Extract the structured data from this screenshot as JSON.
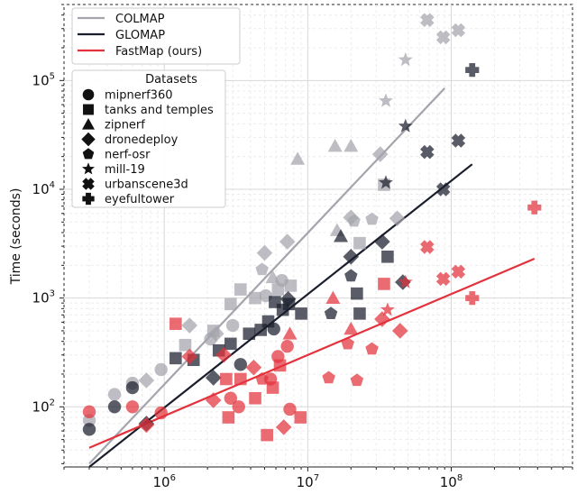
{
  "chart_data": {
    "type": "scatter",
    "title": "",
    "xlabel": "",
    "ylabel": "Time (seconds)",
    "x_scale": "log",
    "y_scale": "log",
    "xlim": [
      200000,
      700000000
    ],
    "ylim": [
      28,
      500000
    ],
    "grid": true,
    "x_tick_labels": [
      "10^6",
      "10^7",
      "10^8"
    ],
    "x_ticks": [
      1000000,
      10000000,
      100000000
    ],
    "y_tick_labels": [
      "10^2",
      "10^3",
      "10^4",
      "10^5"
    ],
    "y_ticks": [
      100,
      1000,
      10000,
      100000
    ],
    "methods_legend": {
      "placement": "top-left",
      "entries": [
        {
          "name": "COLMAP",
          "color": "#a4a4ac"
        },
        {
          "name": "GLOMAP",
          "color": "#1a1e2c"
        },
        {
          "name": "FastMap (ours)",
          "color": "#e3323c"
        }
      ]
    },
    "datasets_legend": {
      "title": "Datasets",
      "placement": "upper-left",
      "entries": [
        {
          "name": "mipnerf360",
          "marker": "circle"
        },
        {
          "name": "tanks and temples",
          "marker": "square"
        },
        {
          "name": "zipnerf",
          "marker": "triangle"
        },
        {
          "name": "dronedeploy",
          "marker": "diamond"
        },
        {
          "name": "nerf-osr",
          "marker": "pentagon"
        },
        {
          "name": "mill-19",
          "marker": "star"
        },
        {
          "name": "urbanscene3d",
          "marker": "x"
        },
        {
          "name": "eyefultower",
          "marker": "plus"
        }
      ]
    },
    "series": [
      {
        "name": "COLMAP",
        "color": "#a4a4ac",
        "trend": [
          [
            300000,
            30
          ],
          [
            90000000,
            85000
          ]
        ],
        "points": [
          {
            "m": "circle",
            "x": 300000,
            "y": 75
          },
          {
            "m": "circle",
            "x": 450000,
            "y": 130
          },
          {
            "m": "circle",
            "x": 600000,
            "y": 165
          },
          {
            "m": "circle",
            "x": 950000,
            "y": 220
          },
          {
            "m": "circle",
            "x": 2100000,
            "y": 420
          },
          {
            "m": "circle",
            "x": 3000000,
            "y": 560
          },
          {
            "m": "circle",
            "x": 5100000,
            "y": 1050
          },
          {
            "m": "circle",
            "x": 6600000,
            "y": 1450
          },
          {
            "m": "square",
            "x": 1400000,
            "y": 370
          },
          {
            "m": "square",
            "x": 2900000,
            "y": 880
          },
          {
            "m": "square",
            "x": 3400000,
            "y": 1200
          },
          {
            "m": "square",
            "x": 4300000,
            "y": 1000
          },
          {
            "m": "square",
            "x": 6200000,
            "y": 1200
          },
          {
            "m": "square",
            "x": 7600000,
            "y": 1300
          },
          {
            "m": "square",
            "x": 2200000,
            "y": 500
          },
          {
            "m": "square",
            "x": 23000000,
            "y": 3200
          },
          {
            "m": "square",
            "x": 34000000,
            "y": 11000
          },
          {
            "m": "triangle",
            "x": 8500000,
            "y": 19000
          },
          {
            "m": "triangle",
            "x": 15500000,
            "y": 25000
          },
          {
            "m": "triangle",
            "x": 20000000,
            "y": 25000
          },
          {
            "m": "triangle",
            "x": 16000000,
            "y": 4200
          },
          {
            "m": "triangle",
            "x": 5700000,
            "y": 1550
          },
          {
            "m": "diamond",
            "x": 750000,
            "y": 175
          },
          {
            "m": "diamond",
            "x": 1500000,
            "y": 560
          },
          {
            "m": "diamond",
            "x": 2300000,
            "y": 470
          },
          {
            "m": "diamond",
            "x": 5000000,
            "y": 2600
          },
          {
            "m": "diamond",
            "x": 7200000,
            "y": 3300
          },
          {
            "m": "diamond",
            "x": 32000000,
            "y": 21000
          },
          {
            "m": "diamond",
            "x": 20000000,
            "y": 5500
          },
          {
            "m": "diamond",
            "x": 42000000,
            "y": 5400
          },
          {
            "m": "pentagon",
            "x": 4800000,
            "y": 1830
          },
          {
            "m": "pentagon",
            "x": 21000000,
            "y": 5100
          },
          {
            "m": "pentagon",
            "x": 28000000,
            "y": 5300
          },
          {
            "m": "star",
            "x": 35000000,
            "y": 65000
          },
          {
            "m": "star",
            "x": 48000000,
            "y": 155000
          },
          {
            "m": "x",
            "x": 68000000,
            "y": 360000
          },
          {
            "m": "x",
            "x": 88000000,
            "y": 250000
          },
          {
            "m": "x",
            "x": 112000000,
            "y": 290000
          }
        ]
      },
      {
        "name": "GLOMAP",
        "color": "#1a1e2c",
        "trend": [
          [
            300000,
            28
          ],
          [
            140000000,
            17000
          ]
        ],
        "points": [
          {
            "m": "circle",
            "x": 300000,
            "y": 62
          },
          {
            "m": "circle",
            "x": 450000,
            "y": 100
          },
          {
            "m": "circle",
            "x": 600000,
            "y": 150
          },
          {
            "m": "circle",
            "x": 3400000,
            "y": 245
          },
          {
            "m": "circle",
            "x": 5800000,
            "y": 520
          },
          {
            "m": "square",
            "x": 1200000,
            "y": 280
          },
          {
            "m": "square",
            "x": 1600000,
            "y": 270
          },
          {
            "m": "square",
            "x": 2400000,
            "y": 330
          },
          {
            "m": "square",
            "x": 2900000,
            "y": 380
          },
          {
            "m": "square",
            "x": 3900000,
            "y": 470
          },
          {
            "m": "square",
            "x": 4700000,
            "y": 510
          },
          {
            "m": "square",
            "x": 5300000,
            "y": 610
          },
          {
            "m": "square",
            "x": 5900000,
            "y": 920
          },
          {
            "m": "square",
            "x": 6700000,
            "y": 780
          },
          {
            "m": "square",
            "x": 7400000,
            "y": 880
          },
          {
            "m": "square",
            "x": 9000000,
            "y": 720
          },
          {
            "m": "square",
            "x": 22000000,
            "y": 1100
          },
          {
            "m": "square",
            "x": 36000000,
            "y": 2400
          },
          {
            "m": "square",
            "x": 23000000,
            "y": 720
          },
          {
            "m": "triangle",
            "x": 17000000,
            "y": 3700
          },
          {
            "m": "diamond",
            "x": 750000,
            "y": 70
          },
          {
            "m": "diamond",
            "x": 2200000,
            "y": 185
          },
          {
            "m": "diamond",
            "x": 7300000,
            "y": 980
          },
          {
            "m": "diamond",
            "x": 20000000,
            "y": 2400
          },
          {
            "m": "diamond",
            "x": 33000000,
            "y": 3300
          },
          {
            "m": "diamond",
            "x": 46000000,
            "y": 1400
          },
          {
            "m": "pentagon",
            "x": 14500000,
            "y": 720
          },
          {
            "m": "pentagon",
            "x": 20000000,
            "y": 1600
          },
          {
            "m": "star",
            "x": 35000000,
            "y": 11500
          },
          {
            "m": "star",
            "x": 48000000,
            "y": 38000
          },
          {
            "m": "x",
            "x": 68000000,
            "y": 22000
          },
          {
            "m": "x",
            "x": 88000000,
            "y": 10000
          },
          {
            "m": "x",
            "x": 112000000,
            "y": 28000
          },
          {
            "m": "plus",
            "x": 140000000,
            "y": 125000
          }
        ]
      },
      {
        "name": "FastMap (ours)",
        "color": "#e3323c",
        "trend": [
          [
            300000,
            42
          ],
          [
            380000000,
            2300
          ]
        ],
        "points": [
          {
            "m": "circle",
            "x": 300000,
            "y": 90
          },
          {
            "m": "circle",
            "x": 600000,
            "y": 100
          },
          {
            "m": "circle",
            "x": 950000,
            "y": 88
          },
          {
            "m": "circle",
            "x": 2900000,
            "y": 120
          },
          {
            "m": "circle",
            "x": 3300000,
            "y": 100
          },
          {
            "m": "circle",
            "x": 5500000,
            "y": 180
          },
          {
            "m": "circle",
            "x": 6200000,
            "y": 290
          },
          {
            "m": "circle",
            "x": 7200000,
            "y": 360
          },
          {
            "m": "circle",
            "x": 7500000,
            "y": 95
          },
          {
            "m": "square",
            "x": 1200000,
            "y": 580
          },
          {
            "m": "square",
            "x": 2700000,
            "y": 180
          },
          {
            "m": "square",
            "x": 2800000,
            "y": 80
          },
          {
            "m": "square",
            "x": 3400000,
            "y": 180
          },
          {
            "m": "square",
            "x": 4300000,
            "y": 120
          },
          {
            "m": "square",
            "x": 5200000,
            "y": 55
          },
          {
            "m": "square",
            "x": 5700000,
            "y": 150
          },
          {
            "m": "square",
            "x": 6400000,
            "y": 240
          },
          {
            "m": "square",
            "x": 8900000,
            "y": 80
          },
          {
            "m": "square",
            "x": 34000000,
            "y": 1350
          },
          {
            "m": "triangle",
            "x": 15000000,
            "y": 1000
          },
          {
            "m": "triangle",
            "x": 20000000,
            "y": 520
          },
          {
            "m": "triangle",
            "x": 7500000,
            "y": 470
          },
          {
            "m": "diamond",
            "x": 750000,
            "y": 68
          },
          {
            "m": "diamond",
            "x": 1500000,
            "y": 290
          },
          {
            "m": "diamond",
            "x": 2200000,
            "y": 115
          },
          {
            "m": "diamond",
            "x": 2600000,
            "y": 300
          },
          {
            "m": "diamond",
            "x": 4200000,
            "y": 230
          },
          {
            "m": "diamond",
            "x": 6800000,
            "y": 65
          },
          {
            "m": "diamond",
            "x": 33000000,
            "y": 640
          },
          {
            "m": "diamond",
            "x": 44000000,
            "y": 500
          },
          {
            "m": "pentagon",
            "x": 4800000,
            "y": 180
          },
          {
            "m": "pentagon",
            "x": 14000000,
            "y": 185
          },
          {
            "m": "pentagon",
            "x": 19000000,
            "y": 380
          },
          {
            "m": "pentagon",
            "x": 22000000,
            "y": 175
          },
          {
            "m": "pentagon",
            "x": 28000000,
            "y": 340
          },
          {
            "m": "star",
            "x": 36000000,
            "y": 780
          },
          {
            "m": "star",
            "x": 48000000,
            "y": 1400
          },
          {
            "m": "x",
            "x": 68000000,
            "y": 2950
          },
          {
            "m": "x",
            "x": 88000000,
            "y": 1500
          },
          {
            "m": "x",
            "x": 112000000,
            "y": 1750
          },
          {
            "m": "plus",
            "x": 140000000,
            "y": 1000
          },
          {
            "m": "plus",
            "x": 380000000,
            "y": 6800
          }
        ]
      }
    ]
  }
}
